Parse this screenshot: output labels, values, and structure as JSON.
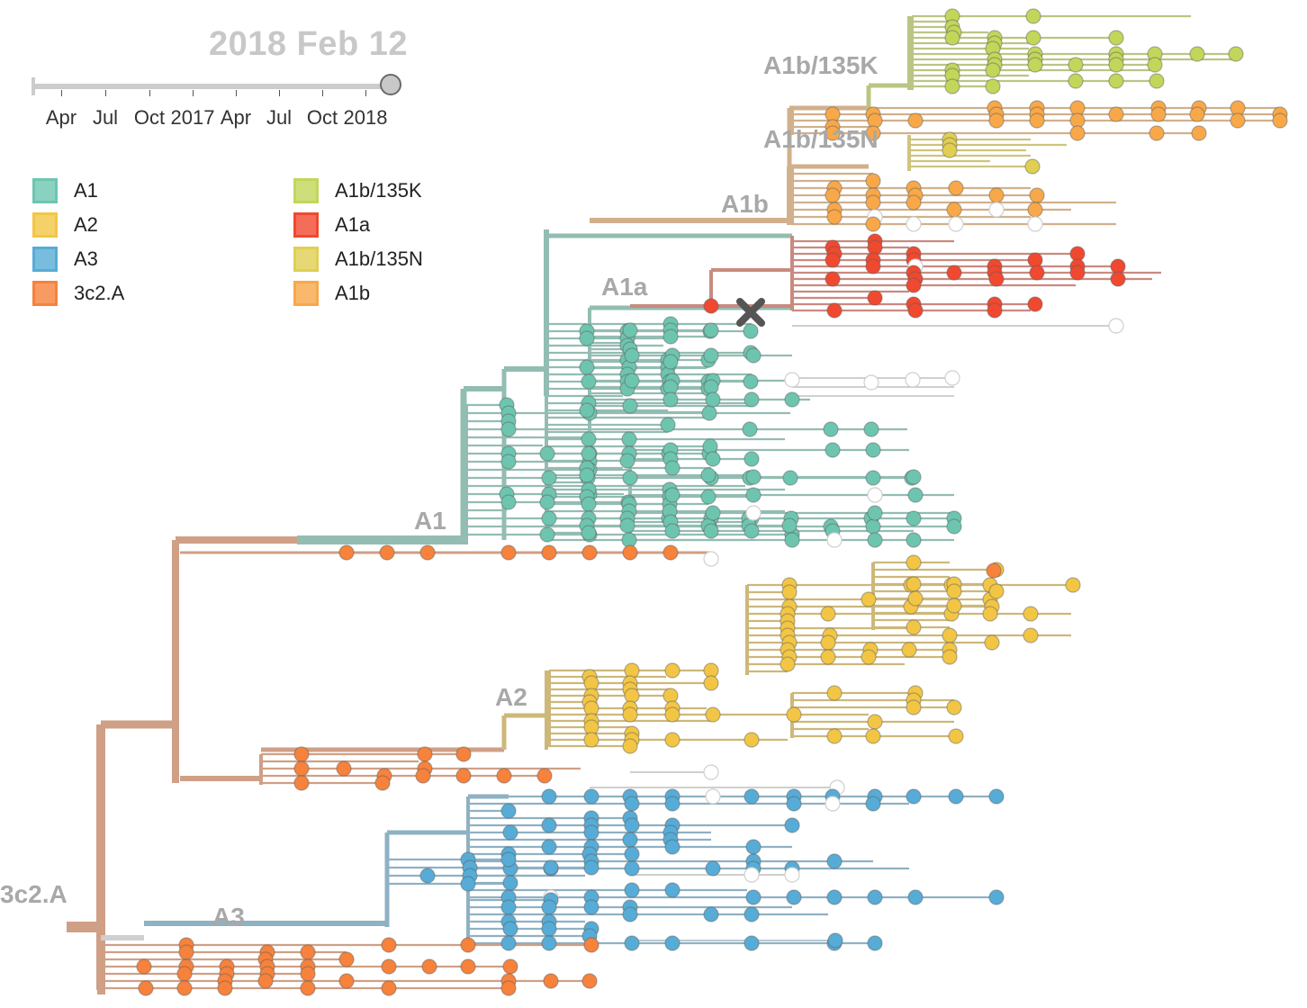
{
  "date_title": "2018 Feb 12",
  "timeline": {
    "ticks": [
      "Apr",
      "Jul",
      "Oct",
      "2017",
      "Apr",
      "Jul",
      "Oct",
      "2018"
    ],
    "handle_position": 1.0
  },
  "legend": [
    {
      "label": "A1",
      "color": "#6dc5b0"
    },
    {
      "label": "A2",
      "color": "#f2c644"
    },
    {
      "label": "A3",
      "color": "#56acd6"
    },
    {
      "label": "3c2.A",
      "color": "#f6823c"
    },
    {
      "label": "A1b/135K",
      "color": "#c2d65a"
    },
    {
      "label": "A1a",
      "color": "#f0492f"
    },
    {
      "label": "A1b/135N",
      "color": "#e0cf52"
    },
    {
      "label": "A1b",
      "color": "#f8a848"
    }
  ],
  "clade_labels": [
    "A1b/135K",
    "A1b/135N",
    "A1b",
    "A1a",
    "A1",
    "A2",
    "A3",
    "3c2.A"
  ]
}
